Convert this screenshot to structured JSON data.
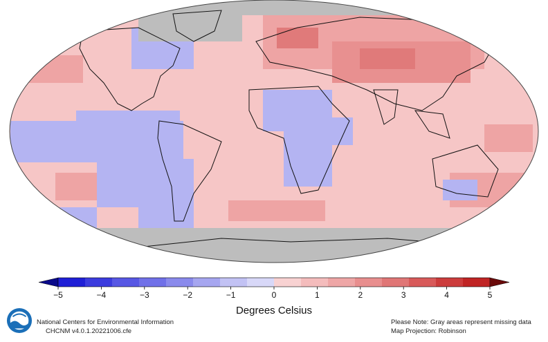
{
  "colorbar": {
    "title": "Degrees Celsius",
    "ticks": [
      "−5",
      "−4",
      "−3",
      "−2",
      "−1",
      "0",
      "1",
      "2",
      "3",
      "4",
      "5"
    ],
    "tick_values": [
      -5,
      -4,
      -3,
      -2,
      -1,
      0,
      1,
      2,
      3,
      4,
      5
    ],
    "colors": [
      "#1f1fd6",
      "#3b3bde",
      "#5757e4",
      "#7070e8",
      "#8a8aec",
      "#a6a6f0",
      "#c2c2f4",
      "#d8d8f8",
      "#f8d2d2",
      "#f4bcbc",
      "#eea6a6",
      "#e88e8e",
      "#e07676",
      "#d85a5a",
      "#cc3c3c",
      "#c02424"
    ],
    "under_color": "#0a0a8a",
    "over_color": "#6a0a0a"
  },
  "map": {
    "projection": "Robinson",
    "missing_color": "#bdbdbd",
    "land_outline_color": "#111111"
  },
  "footer": {
    "left_line1": "National Centers for Environmental Information",
    "left_line2": "CHCNM v4.0.1.20221006.cfe",
    "right_line1": "Please Note: Gray areas represent missing data",
    "right_line2": "Map Projection: Robinson"
  },
  "logo": {
    "text": "NOAA"
  }
}
